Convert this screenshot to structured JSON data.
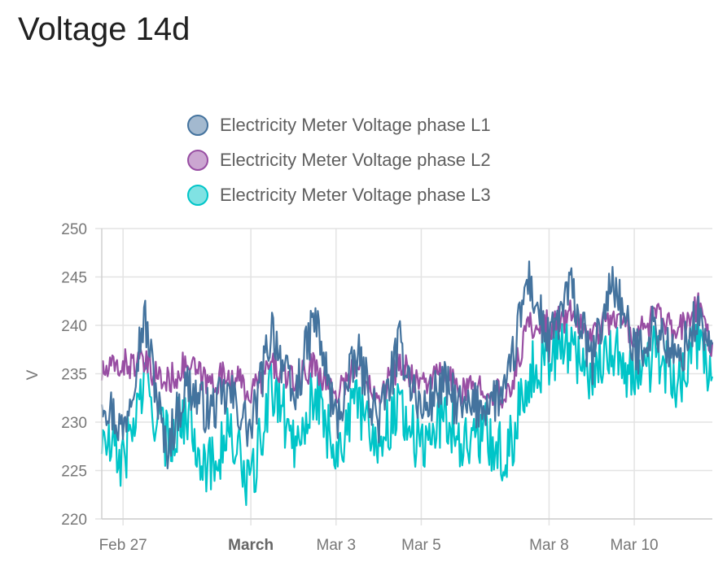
{
  "card": {
    "title": "Voltage 14d"
  },
  "chart_data": {
    "type": "line",
    "title": "Voltage 14d",
    "xlabel": "",
    "ylabel": "V",
    "ylim": [
      220,
      250
    ],
    "yticks": [
      220,
      225,
      230,
      235,
      240,
      245,
      250
    ],
    "xlim": [
      "2024-02-26T12:00",
      "2024-03-11T20:00"
    ],
    "xticks": [
      {
        "label": "Feb 27",
        "x": "2024-02-27T00:00",
        "bold": false
      },
      {
        "label": "March",
        "x": "2024-03-01T00:00",
        "bold": true
      },
      {
        "label": "Mar 3",
        "x": "2024-03-03T00:00",
        "bold": false
      },
      {
        "label": "Mar 5",
        "x": "2024-03-05T00:00",
        "bold": false
      },
      {
        "label": "Mar 8",
        "x": "2024-03-08T00:00",
        "bold": false
      },
      {
        "label": "Mar 10",
        "x": "2024-03-10T00:00",
        "bold": false
      }
    ],
    "grid": true,
    "legend_position": "top-center",
    "series": [
      {
        "name": "Electricity Meter Voltage phase L1",
        "color": "#44739e",
        "fill": "#a3b9cf",
        "x": [
          "2024-02-26T12:00",
          "2024-02-27T00:00",
          "2024-02-27T12:00",
          "2024-02-28T00:00",
          "2024-02-28T12:00",
          "2024-02-29T00:00",
          "2024-02-29T12:00",
          "2024-03-01T00:00",
          "2024-03-01T12:00",
          "2024-03-02T00:00",
          "2024-03-02T12:00",
          "2024-03-03T00:00",
          "2024-03-03T12:00",
          "2024-03-04T00:00",
          "2024-03-04T12:00",
          "2024-03-05T00:00",
          "2024-03-05T12:00",
          "2024-03-06T00:00",
          "2024-03-06T12:00",
          "2024-03-07T00:00",
          "2024-03-07T12:00",
          "2024-03-08T00:00",
          "2024-03-08T12:00",
          "2024-03-09T00:00",
          "2024-03-09T12:00",
          "2024-03-10T00:00",
          "2024-03-10T12:00",
          "2024-03-11T00:00",
          "2024-03-11T12:00",
          "2024-03-11T20:00"
        ],
        "values": [
          233,
          229,
          241,
          227,
          234,
          231,
          233,
          229,
          240,
          232,
          241,
          230,
          237,
          230,
          238,
          231,
          234,
          231,
          232,
          233,
          245,
          238,
          244,
          236,
          245,
          237,
          240,
          236,
          241,
          237
        ]
      },
      {
        "name": "Electricity Meter Voltage phase L2",
        "color": "#984ea3",
        "fill": "#cba6d1",
        "x": [
          "2024-02-26T12:00",
          "2024-02-27T00:00",
          "2024-02-27T12:00",
          "2024-02-28T00:00",
          "2024-02-28T12:00",
          "2024-02-29T00:00",
          "2024-02-29T12:00",
          "2024-03-01T00:00",
          "2024-03-01T12:00",
          "2024-03-02T00:00",
          "2024-03-02T12:00",
          "2024-03-03T00:00",
          "2024-03-03T12:00",
          "2024-03-04T00:00",
          "2024-03-04T12:00",
          "2024-03-05T00:00",
          "2024-03-05T12:00",
          "2024-03-06T00:00",
          "2024-03-06T12:00",
          "2024-03-07T00:00",
          "2024-03-07T12:00",
          "2024-03-08T00:00",
          "2024-03-08T12:00",
          "2024-03-09T00:00",
          "2024-03-09T12:00",
          "2024-03-10T00:00",
          "2024-03-10T12:00",
          "2024-03-11T00:00",
          "2024-03-11T12:00",
          "2024-03-11T20:00"
        ],
        "values": [
          235,
          236,
          236,
          234,
          236,
          234,
          235,
          233,
          236,
          234,
          236,
          233,
          236,
          233,
          236,
          234,
          235,
          233,
          234,
          232,
          240,
          240,
          241,
          239,
          241,
          239,
          241,
          239,
          242,
          238
        ]
      },
      {
        "name": "Electricity Meter Voltage phase L3",
        "color": "#00c5c8",
        "fill": "#80e2e3",
        "x": [
          "2024-02-26T12:00",
          "2024-02-27T00:00",
          "2024-02-27T12:00",
          "2024-02-28T00:00",
          "2024-02-28T12:00",
          "2024-02-29T00:00",
          "2024-02-29T12:00",
          "2024-03-01T00:00",
          "2024-03-01T12:00",
          "2024-03-02T00:00",
          "2024-03-02T12:00",
          "2024-03-03T00:00",
          "2024-03-03T12:00",
          "2024-03-04T00:00",
          "2024-03-04T12:00",
          "2024-03-05T00:00",
          "2024-03-05T12:00",
          "2024-03-06T00:00",
          "2024-03-06T12:00",
          "2024-03-07T00:00",
          "2024-03-07T12:00",
          "2024-03-08T00:00",
          "2024-03-08T12:00",
          "2024-03-09T00:00",
          "2024-03-09T12:00",
          "2024-03-10T00:00",
          "2024-03-10T12:00",
          "2024-03-11T00:00",
          "2024-03-11T12:00",
          "2024-03-11T20:00"
        ],
        "values": [
          228,
          226,
          234,
          228,
          231,
          225,
          229,
          223,
          234,
          228,
          233,
          227,
          232,
          228,
          232,
          227,
          231,
          228,
          229,
          226,
          235,
          237,
          238,
          235,
          238,
          234,
          237,
          234,
          238,
          235
        ]
      }
    ]
  }
}
